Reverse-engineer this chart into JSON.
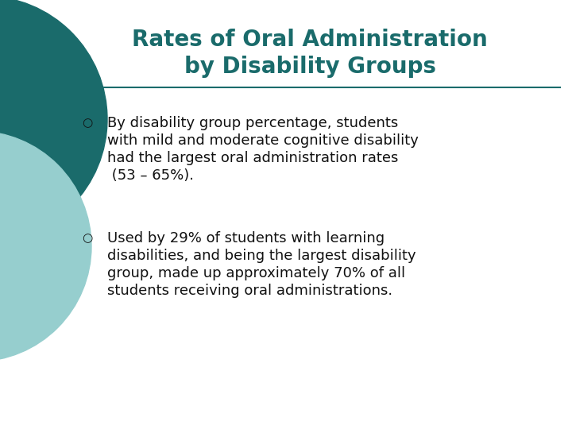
{
  "title_line1": "Rates of Oral Administration",
  "title_line2": "by Disability Groups",
  "title_color": "#1a6b6b",
  "title_fontsize": 20,
  "background_color": "#ffffff",
  "separator_color": "#1a6b6b",
  "bullet_symbol": "○",
  "bullet1_lines": [
    "By disability group percentage, students",
    "with mild and moderate cognitive disability",
    "had the largest oral administration rates",
    " (53 – 65%)."
  ],
  "bullet2_lines": [
    "Used by 29% of students with learning",
    "disabilities, and being the largest disability",
    "group, made up approximately 70% of all",
    "students receiving oral administrations."
  ],
  "text_color": "#111111",
  "text_fontsize": 13.0,
  "bullet_fontsize": 11,
  "decor_color1": "#1a6b6b",
  "decor_color2": "#96cece"
}
